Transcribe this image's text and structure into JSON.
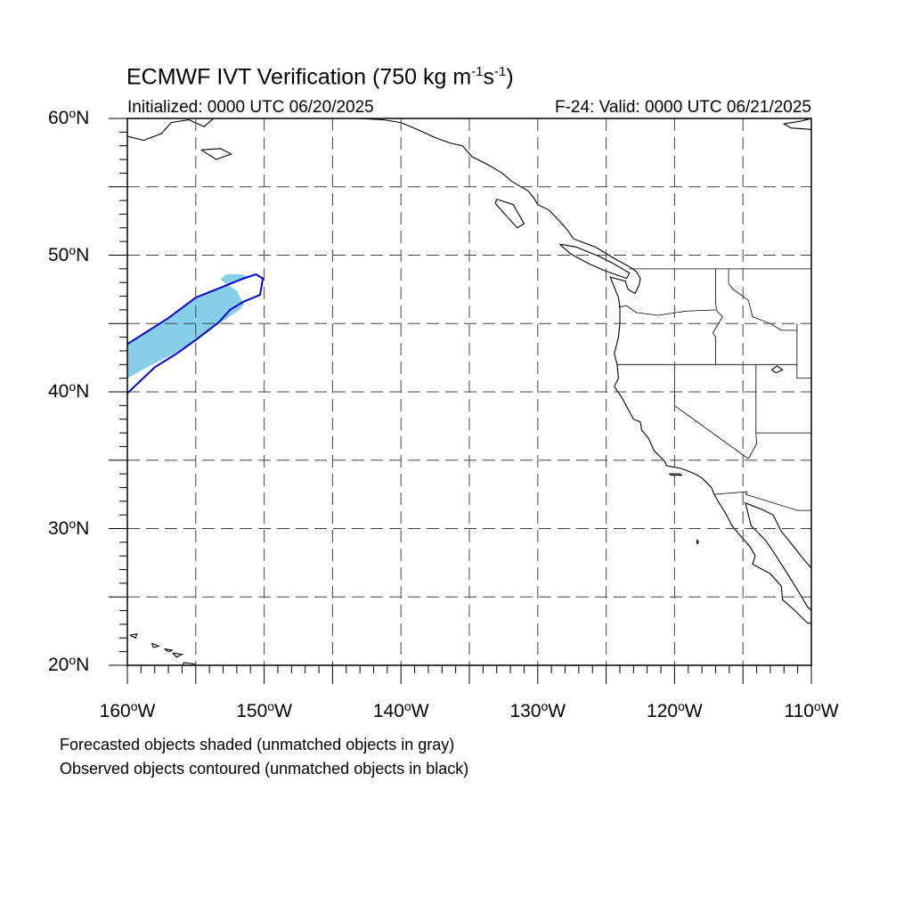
{
  "title": {
    "prefix": "ECMWF IVT Verification (750 kg m",
    "exp1": "-1",
    "mid": "s",
    "exp2": "-1",
    "suffix": ")"
  },
  "subtitle_left": "Initialized: 0000 UTC 06/20/2025",
  "subtitle_right": "F-24: Valid: 0000 UTC 06/21/2025",
  "map": {
    "projection": "cylindrical equidistant",
    "lon_range": [
      -160,
      -110
    ],
    "lat_range": [
      20,
      60
    ],
    "grid": "dashed every 5 degrees",
    "lat_labels": [
      {
        "lat": 60,
        "num": "60",
        "hemi": "N"
      },
      {
        "lat": 50,
        "num": "50",
        "hemi": "N"
      },
      {
        "lat": 40,
        "num": "40",
        "hemi": "N"
      },
      {
        "lat": 30,
        "num": "30",
        "hemi": "N"
      },
      {
        "lat": 20,
        "num": "20",
        "hemi": "N"
      }
    ],
    "lon_labels": [
      {
        "lon": -160,
        "num": "160",
        "hemi": "W"
      },
      {
        "lon": -150,
        "num": "150",
        "hemi": "W"
      },
      {
        "lon": -140,
        "num": "140",
        "hemi": "W"
      },
      {
        "lon": -130,
        "num": "130",
        "hemi": "W"
      },
      {
        "lon": -120,
        "num": "120",
        "hemi": "W"
      },
      {
        "lon": -110,
        "num": "110",
        "hemi": "W"
      }
    ],
    "forecast_object": {
      "fill_color": "#87ceeb",
      "matched": true,
      "outline": [
        [
          -160,
          43.5
        ],
        [
          -157,
          45.4
        ],
        [
          -155,
          46.9
        ],
        [
          -153,
          47.7
        ],
        [
          -151.8,
          48.1
        ],
        [
          -151,
          48.4
        ],
        [
          -151.7,
          48.6
        ],
        [
          -152.8,
          48.6
        ],
        [
          -153.2,
          48.2
        ],
        [
          -152,
          47.4
        ],
        [
          -151.5,
          46.4
        ],
        [
          -151.8,
          46.0
        ],
        [
          -153,
          45.2
        ],
        [
          -154.8,
          43.9
        ],
        [
          -156.6,
          42.8
        ],
        [
          -158,
          42.1
        ],
        [
          -160,
          41.0
        ]
      ]
    },
    "observed_object": {
      "line_color": "#0000dd",
      "matched": true,
      "outline": [
        [
          -160,
          43.5
        ],
        [
          -157,
          45.4
        ],
        [
          -155,
          46.9
        ],
        [
          -153,
          47.7
        ],
        [
          -151.5,
          48.3
        ],
        [
          -150.6,
          48.6
        ],
        [
          -150.1,
          48.3
        ],
        [
          -150.3,
          47.1
        ],
        [
          -151.5,
          46.6
        ],
        [
          -152.5,
          46.0
        ],
        [
          -153.3,
          45.1
        ],
        [
          -155,
          43.8
        ],
        [
          -156.4,
          42.8
        ],
        [
          -158,
          41.8
        ],
        [
          -160,
          39.9
        ]
      ]
    },
    "borders": {
      "canada_us_west": [
        [
          -123.3,
          49.0
        ],
        [
          -110,
          49.0
        ]
      ],
      "oregon_north": [
        [
          -124.1,
          46.2
        ],
        [
          -123.5,
          46.3
        ],
        [
          -122.8,
          45.8
        ],
        [
          -121.2,
          45.6
        ],
        [
          -119.2,
          45.9
        ],
        [
          -117.0,
          46.0
        ]
      ],
      "wa_id_oregon_id": [
        [
          -117.0,
          49.0
        ],
        [
          -117.0,
          46.4
        ],
        [
          -116.9,
          45.9
        ],
        [
          -116.5,
          45.5
        ],
        [
          -117.2,
          44.3
        ],
        [
          -117.0,
          44.0
        ],
        [
          -117.0,
          42.0
        ]
      ],
      "ca_or_nv_id_ut_north": [
        [
          -124.2,
          42.0
        ],
        [
          -111.05,
          42.0
        ]
      ],
      "idaho_montana": [
        [
          -116.05,
          49.0
        ],
        [
          -116.05,
          47.9
        ],
        [
          -115.7,
          47.5
        ],
        [
          -114.6,
          46.7
        ],
        [
          -114.3,
          45.5
        ],
        [
          -113.0,
          45.0
        ],
        [
          -112.2,
          44.5
        ],
        [
          -111.1,
          44.5
        ]
      ],
      "nevada_utah": [
        [
          -114.05,
          42.0
        ],
        [
          -114.05,
          37.0
        ],
        [
          -114.0,
          36.2
        ],
        [
          -114.6,
          35.1
        ]
      ],
      "ca_nevada": [
        [
          -120.0,
          42.0
        ],
        [
          -120.0,
          39.0
        ],
        [
          -114.6,
          35.1
        ]
      ],
      "utah_arizona": [
        [
          -114.05,
          37.0
        ],
        [
          -110,
          37.0
        ]
      ],
      "wyoming_west": [
        [
          -111.05,
          45.0
        ],
        [
          -111.05,
          41.0
        ],
        [
          -110,
          41.0
        ]
      ],
      "us_mexico": [
        [
          -117.1,
          32.5
        ],
        [
          -114.7,
          32.7
        ],
        [
          -114.8,
          32.5
        ],
        [
          -111.0,
          31.33
        ],
        [
          -110,
          31.33
        ]
      ]
    },
    "coastlines": {
      "alaska_mainland": [
        [
          -160,
          58.7
        ],
        [
          -158.8,
          58.4
        ],
        [
          -157.5,
          58.9
        ],
        [
          -156.8,
          59.7
        ],
        [
          -155.5,
          59.9
        ],
        [
          -154.4,
          59.4
        ],
        [
          -153.7,
          60
        ],
        [
          -146.5,
          60
        ],
        [
          -145.0,
          60.1
        ],
        [
          -141.3,
          59.9
        ],
        [
          -140.0,
          59.7
        ],
        [
          -138.6,
          59.1
        ],
        [
          -137.5,
          58.6
        ],
        [
          -136.4,
          58.2
        ],
        [
          -135.5,
          58.0
        ],
        [
          -134.8,
          57.2
        ],
        [
          -133.6,
          56.6
        ],
        [
          -132.6,
          56.0
        ],
        [
          -131.9,
          55.4
        ],
        [
          -130.7,
          54.7
        ],
        [
          -130.3,
          54.2
        ],
        [
          -130.0,
          53.7
        ],
        [
          -129.2,
          53.3
        ],
        [
          -128.5,
          52.6
        ],
        [
          -127.8,
          51.8
        ],
        [
          -127.4,
          51.2
        ],
        [
          -125.8,
          50.6
        ],
        [
          -124.3,
          49.7
        ],
        [
          -123.2,
          49.1
        ],
        [
          -122.8,
          48.8
        ],
        [
          -122.5,
          48.3
        ],
        [
          -122.6,
          47.8
        ],
        [
          -122.9,
          47.2
        ],
        [
          -123.4,
          47.5
        ],
        [
          -123.6,
          48.1
        ],
        [
          -124.7,
          48.4
        ],
        [
          -124.1,
          46.9
        ],
        [
          -124.0,
          46.2
        ],
        [
          -124.0,
          45.0
        ],
        [
          -124.1,
          44.0
        ],
        [
          -124.4,
          42.8
        ],
        [
          -124.2,
          42.0
        ],
        [
          -124.1,
          41.0
        ],
        [
          -124.4,
          40.4
        ],
        [
          -123.8,
          39.5
        ],
        [
          -123.0,
          38.0
        ],
        [
          -122.5,
          37.8
        ],
        [
          -122.4,
          37.2
        ],
        [
          -121.9,
          36.6
        ],
        [
          -121.5,
          35.7
        ],
        [
          -120.7,
          34.9
        ],
        [
          -120.6,
          34.6
        ],
        [
          -119.5,
          34.4
        ],
        [
          -118.5,
          34.0
        ],
        [
          -118.0,
          33.7
        ],
        [
          -117.3,
          33.0
        ],
        [
          -117.1,
          32.5
        ],
        [
          -116.7,
          31.8
        ],
        [
          -116.2,
          31.0
        ],
        [
          -115.8,
          30.2
        ],
        [
          -115.2,
          29.5
        ],
        [
          -114.5,
          28.7
        ],
        [
          -114.1,
          28.0
        ],
        [
          -114.3,
          27.4
        ],
        [
          -113.0,
          26.7
        ],
        [
          -112.2,
          25.8
        ],
        [
          -112.1,
          24.8
        ],
        [
          -111.2,
          24.0
        ],
        [
          -110.3,
          23.1
        ],
        [
          -109.5,
          23.0
        ]
      ],
      "baja_east": [
        [
          -114.8,
          31.8
        ],
        [
          -114.6,
          31.0
        ],
        [
          -114.4,
          30.2
        ],
        [
          -113.4,
          29.2
        ],
        [
          -112.9,
          28.5
        ],
        [
          -112.2,
          27.4
        ],
        [
          -111.5,
          26.3
        ],
        [
          -110.7,
          25.0
        ],
        [
          -110.3,
          24.3
        ],
        [
          -110,
          24.0
        ]
      ],
      "sonora_coast": [
        [
          -114.9,
          31.9
        ],
        [
          -113.6,
          31.4
        ],
        [
          -112.8,
          31.0
        ],
        [
          -112.2,
          29.8
        ],
        [
          -111.3,
          28.7
        ],
        [
          -110.6,
          27.8
        ],
        [
          -110,
          27.1
        ]
      ],
      "vancouver_island": [
        [
          -128.4,
          50.8
        ],
        [
          -127.6,
          50.1
        ],
        [
          -126.3,
          49.4
        ],
        [
          -125.2,
          48.9
        ],
        [
          -123.5,
          48.3
        ],
        [
          -123.3,
          48.7
        ],
        [
          -124.5,
          49.4
        ],
        [
          -125.5,
          49.9
        ],
        [
          -127.2,
          50.6
        ],
        [
          -128.4,
          50.8
        ]
      ],
      "haida_gwaii": [
        [
          -133.0,
          54.1
        ],
        [
          -131.8,
          53.7
        ],
        [
          -131.0,
          52.3
        ],
        [
          -131.5,
          52.0
        ],
        [
          -132.4,
          53.0
        ],
        [
          -133.1,
          53.8
        ],
        [
          -133.0,
          54.1
        ]
      ],
      "hudson_northeast": [
        [
          -110,
          59.2
        ],
        [
          -111.5,
          59.3
        ],
        [
          -112.0,
          59.6
        ],
        [
          -110.8,
          59.8
        ],
        [
          -110,
          60
        ]
      ],
      "kodiak": [
        [
          -154.6,
          57.7
        ],
        [
          -153.2,
          57.8
        ],
        [
          -152.4,
          57.4
        ],
        [
          -153.5,
          57.0
        ],
        [
          -154.6,
          57.7
        ]
      ],
      "great_salt_lake": [
        [
          -112.6,
          41.4
        ],
        [
          -112.1,
          41.6
        ],
        [
          -112.5,
          41.9
        ],
        [
          -112.9,
          41.6
        ],
        [
          -112.6,
          41.4
        ]
      ],
      "hawaii_kauai": [
        [
          -159.8,
          22.2
        ],
        [
          -159.3,
          22.3
        ],
        [
          -159.4,
          22.0
        ],
        [
          -159.8,
          22.2
        ]
      ],
      "hawaii_oahu": [
        [
          -158.2,
          21.6
        ],
        [
          -157.7,
          21.4
        ],
        [
          -158.1,
          21.3
        ],
        [
          -158.2,
          21.6
        ]
      ],
      "hawaii_molokai": [
        [
          -157.3,
          21.2
        ],
        [
          -156.7,
          21.1
        ],
        [
          -157.0,
          21.0
        ],
        [
          -157.3,
          21.2
        ]
      ],
      "hawaii_maui": [
        [
          -156.7,
          20.9
        ],
        [
          -156.0,
          20.8
        ],
        [
          -156.4,
          20.6
        ],
        [
          -156.7,
          20.9
        ]
      ],
      "hawaii_big": [
        [
          -155.9,
          20.2
        ],
        [
          -155.1,
          20.1
        ],
        [
          -155.0,
          19.6
        ],
        [
          -155.6,
          19.0
        ],
        [
          -155.9,
          19.5
        ],
        [
          -155.9,
          20.2
        ]
      ],
      "channel_islands": [
        [
          -120.4,
          34.0
        ],
        [
          -119.6,
          34.0
        ],
        [
          -119.5,
          33.9
        ],
        [
          -120.2,
          33.9
        ],
        [
          -120.4,
          34.0
        ]
      ],
      "guadalupe": [
        [
          -118.35,
          29.2
        ],
        [
          -118.25,
          29.0
        ],
        [
          -118.35,
          28.9
        ],
        [
          -118.35,
          29.2
        ]
      ]
    }
  },
  "captions": [
    "Forecasted objects shaded (unmatched objects in gray)",
    "Observed objects contoured (unmatched objects in black)"
  ]
}
